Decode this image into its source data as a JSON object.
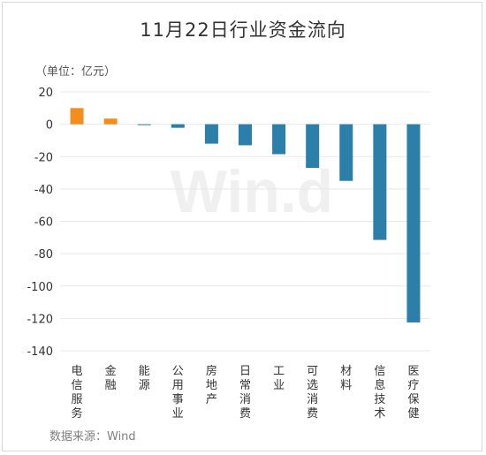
{
  "chart_data": {
    "type": "bar",
    "title": "11月22日行业资金流向",
    "unit_label": "（单位：亿元）",
    "source": "数据来源：Wind",
    "watermark": "Win.d",
    "categories": [
      "电信服务",
      "金融",
      "能源",
      "公用事业",
      "房地产",
      "日常消费",
      "工业",
      "可选消费",
      "材料",
      "信息技术",
      "医疗保健"
    ],
    "values": [
      10.0,
      3.5,
      -0.3,
      -2.2,
      -12.0,
      -13.0,
      -18.5,
      -27.0,
      -35.0,
      -71.5,
      -122.5
    ],
    "ylim": [
      -140,
      20
    ],
    "yticks": [
      20,
      0,
      -20,
      -40,
      -60,
      -80,
      -100,
      -120,
      -140
    ],
    "grid": true,
    "colors": {
      "positive": "#f28e1c",
      "negative": "#2b7fa8",
      "grid": "#e8e8e8"
    }
  }
}
